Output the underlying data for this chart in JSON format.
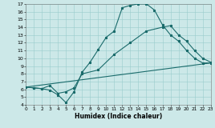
{
  "xlabel": "Humidex (Indice chaleur)",
  "bg_color": "#cce8e8",
  "grid_color": "#99cccc",
  "line_color": "#1a6b6b",
  "xlim": [
    0,
    23
  ],
  "ylim": [
    4,
    17
  ],
  "xticks": [
    0,
    1,
    2,
    3,
    4,
    5,
    6,
    7,
    8,
    9,
    10,
    11,
    12,
    13,
    14,
    15,
    16,
    17,
    18,
    19,
    20,
    21,
    22,
    23
  ],
  "yticks": [
    4,
    5,
    6,
    7,
    8,
    9,
    10,
    11,
    12,
    13,
    14,
    15,
    16,
    17
  ],
  "line1_x": [
    0,
    1,
    2,
    3,
    4,
    5,
    6,
    7,
    8,
    9,
    10,
    11,
    12,
    13,
    14,
    15,
    16,
    17,
    18,
    19,
    20,
    21,
    22,
    23
  ],
  "line1_y": [
    6.3,
    6.2,
    6.1,
    5.9,
    5.3,
    4.3,
    5.7,
    8.2,
    9.5,
    11.1,
    12.7,
    13.5,
    16.5,
    16.8,
    17.0,
    17.0,
    16.2,
    14.3,
    13.0,
    12.2,
    11.0,
    10.0,
    9.4,
    9.4
  ],
  "line2_x": [
    0,
    1,
    2,
    3,
    4,
    5,
    6,
    7,
    9,
    11,
    13,
    15,
    17,
    18,
    19,
    20,
    21,
    22,
    23
  ],
  "line2_y": [
    6.3,
    6.2,
    6.1,
    6.5,
    5.5,
    5.7,
    6.2,
    8.0,
    8.5,
    10.5,
    12.0,
    13.5,
    14.0,
    14.2,
    13.0,
    12.2,
    11.0,
    10.0,
    9.5
  ],
  "line3_x": [
    0,
    23
  ],
  "line3_y": [
    6.3,
    9.4
  ]
}
